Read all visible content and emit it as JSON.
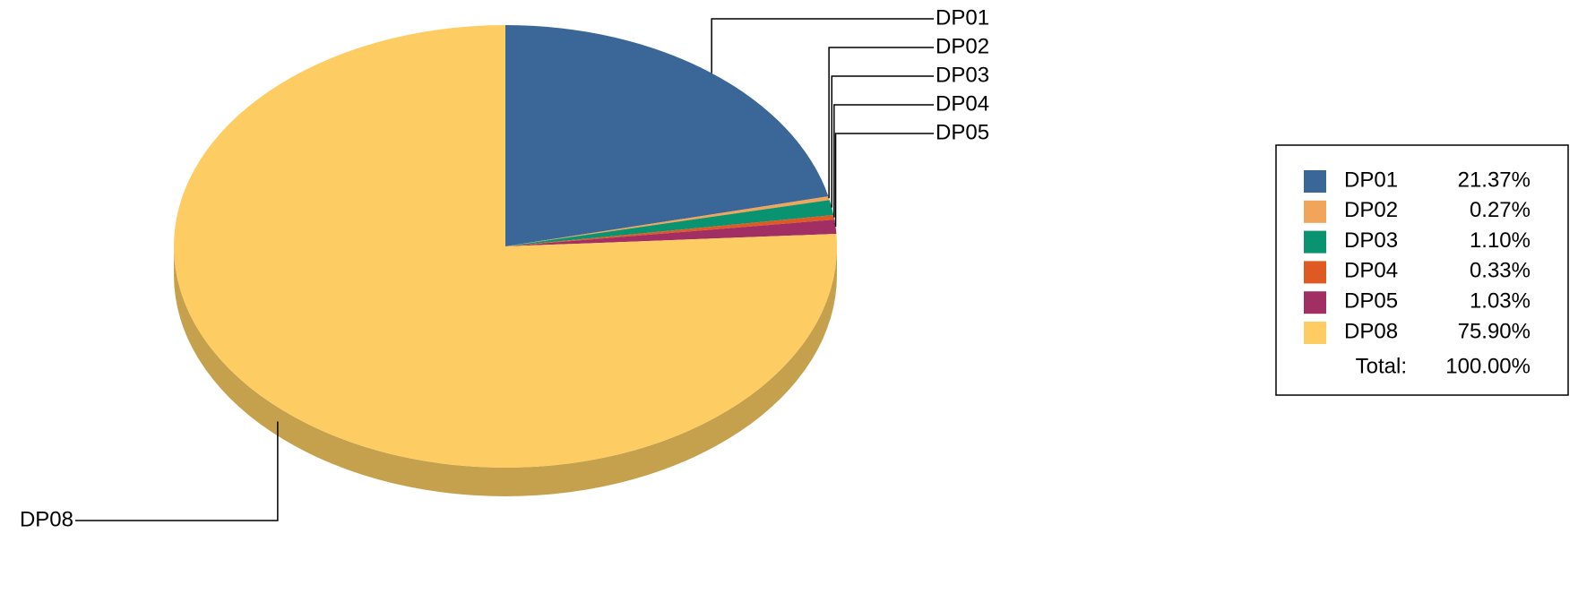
{
  "chart_data": {
    "type": "pie",
    "categories": [
      "DP01",
      "DP02",
      "DP03",
      "DP04",
      "DP05",
      "DP08"
    ],
    "values": [
      21.37,
      0.27,
      1.1,
      0.33,
      1.03,
      75.9
    ],
    "value_labels": [
      "21.37%",
      "0.27%",
      "1.10%",
      "0.33%",
      "1.03%",
      "75.90%"
    ],
    "colors": [
      "#3a6698",
      "#f0a55a",
      "#0a9370",
      "#de5a22",
      "#a22f64",
      "#fdcd63"
    ],
    "total_text": "Total:",
    "total": {
      "value": 100,
      "label": "100.00%"
    },
    "legend": "right"
  }
}
